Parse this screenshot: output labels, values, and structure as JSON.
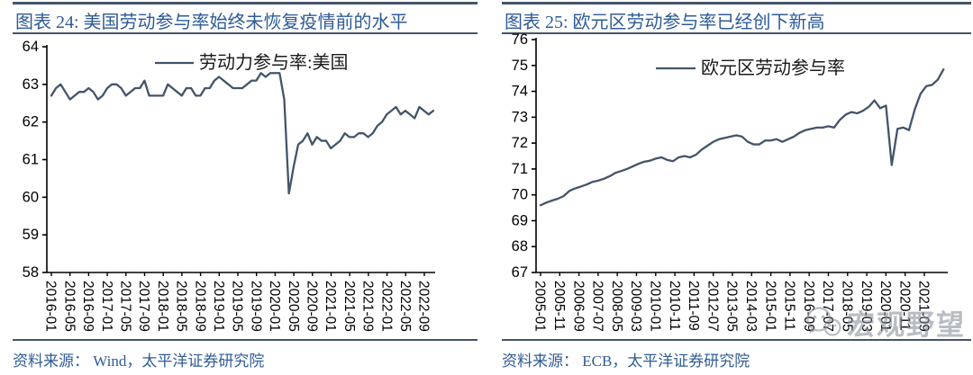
{
  "colors": {
    "series_line": "#44546A",
    "title_text": "#2E5B97",
    "rule": "#44546A",
    "source_text": "#2E5B97",
    "axis": "#000000",
    "legend_text": "#1a1a1a",
    "watermark": "#868e98"
  },
  "watermark": {
    "text": "宏观野望",
    "icon": "wechat-logo-icon"
  },
  "chart_data": [
    {
      "type": "line",
      "title": "图表 24: 美国劳动参与率始终未恢复疫情前的水平",
      "legend": "劳动力参与率:美国",
      "source_label": "资料来源：",
      "source": "Wind，太平洋证券研究院",
      "xlabel": "",
      "ylabel": "",
      "ylim": [
        58,
        64
      ],
      "y_ticks": [
        64,
        63,
        62,
        61,
        60,
        59,
        58
      ],
      "x_freq": "monthly",
      "x_range": [
        "2016-01",
        "2022-11"
      ],
      "x_tick_labels": [
        "2016-01",
        "2016-05",
        "2016-09",
        "2017-01",
        "2017-05",
        "2017-09",
        "2018-01",
        "2018-05",
        "2018-09",
        "2019-01",
        "2019-05",
        "2019-09",
        "2020-01",
        "2020-05",
        "2020-09",
        "2021-01",
        "2021-05",
        "2021-09",
        "2022-01",
        "2022-05",
        "2022-09"
      ],
      "values": [
        62.7,
        62.9,
        63.0,
        62.8,
        62.6,
        62.7,
        62.8,
        62.8,
        62.9,
        62.8,
        62.6,
        62.7,
        62.9,
        63.0,
        63.0,
        62.9,
        62.7,
        62.8,
        62.9,
        62.9,
        63.1,
        62.7,
        62.7,
        62.7,
        62.7,
        63.0,
        62.9,
        62.8,
        62.7,
        62.9,
        62.9,
        62.7,
        62.7,
        62.9,
        62.9,
        63.1,
        63.2,
        63.1,
        63.0,
        62.9,
        62.9,
        62.9,
        63.0,
        63.1,
        63.1,
        63.3,
        63.2,
        63.3,
        63.3,
        63.3,
        62.6,
        60.1,
        60.8,
        61.4,
        61.5,
        61.7,
        61.4,
        61.6,
        61.5,
        61.5,
        61.3,
        61.4,
        61.5,
        61.7,
        61.6,
        61.6,
        61.7,
        61.7,
        61.6,
        61.7,
        61.9,
        62.0,
        62.2,
        62.3,
        62.4,
        62.2,
        62.3,
        62.2,
        62.1,
        62.4,
        62.3,
        62.2,
        62.3
      ]
    },
    {
      "type": "line",
      "title": "图表 25: 欧元区劳动参与率已经创下新高",
      "legend": "欧元区劳动参与率",
      "source_label": "资料来源：",
      "source": "ECB，太平洋证券研究院",
      "xlabel": "",
      "ylabel": "",
      "ylim": [
        67,
        76
      ],
      "y_ticks": [
        76,
        75,
        74,
        73,
        72,
        71,
        70,
        69,
        68,
        67
      ],
      "x_freq": "quarterly",
      "x_range": [
        "2005-Q1",
        "2022-Q3"
      ],
      "x_tick_labels": [
        "2005-01",
        "2005-11",
        "2006-09",
        "2007-07",
        "2008-05",
        "2009-03",
        "2010-01",
        "2010-11",
        "2011-09",
        "2012-07",
        "2013-05",
        "2014-03",
        "2015-01",
        "2015-11",
        "2016-09",
        "2017-07",
        "2018-05",
        "2019-03",
        "2020-01",
        "2020-11",
        "2021-09"
      ],
      "values": [
        69.6,
        69.7,
        69.78,
        69.85,
        69.95,
        70.15,
        70.25,
        70.32,
        70.4,
        70.5,
        70.55,
        70.62,
        70.72,
        70.85,
        70.92,
        71.0,
        71.1,
        71.2,
        71.28,
        71.32,
        71.4,
        71.45,
        71.35,
        71.3,
        71.45,
        71.5,
        71.45,
        71.55,
        71.75,
        71.9,
        72.05,
        72.15,
        72.2,
        72.25,
        72.3,
        72.25,
        72.05,
        71.95,
        71.95,
        72.1,
        72.1,
        72.15,
        72.05,
        72.15,
        72.25,
        72.4,
        72.5,
        72.55,
        72.6,
        72.6,
        72.65,
        72.6,
        72.9,
        73.1,
        73.2,
        73.15,
        73.25,
        73.4,
        73.65,
        73.35,
        73.45,
        71.15,
        72.55,
        72.6,
        72.5,
        73.3,
        73.9,
        74.2,
        74.25,
        74.45,
        74.85
      ]
    }
  ]
}
